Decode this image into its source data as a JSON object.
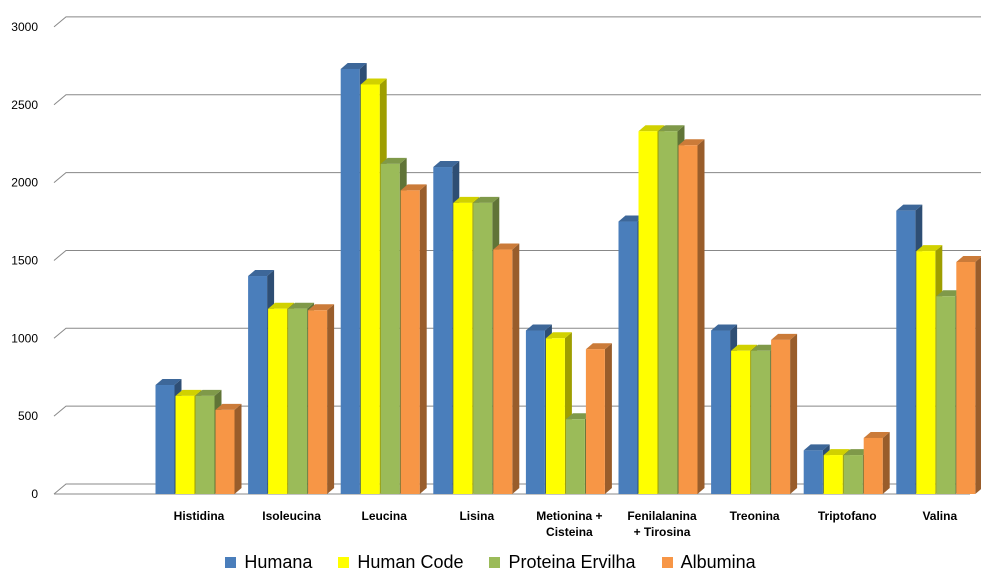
{
  "chart_data": {
    "type": "bar",
    "categories": [
      "Histidina",
      "Isoleucina",
      "Leucina",
      "Lisina",
      "Metionina + Cisteina",
      "Fenilalanina + Tirosina",
      "Treonina",
      "Triptofano",
      "Valina"
    ],
    "category_lines": [
      [
        "Histidina"
      ],
      [
        "Isoleucina"
      ],
      [
        "Leucina"
      ],
      [
        "Lisina"
      ],
      [
        "Metionina +",
        "Cisteina"
      ],
      [
        "Fenilalanina",
        "+ Tirosina"
      ],
      [
        "Treonina"
      ],
      [
        "Triptofano"
      ],
      [
        "Valina"
      ]
    ],
    "series": [
      {
        "name": "Humana",
        "color": "#4a7ebb",
        "values": [
          700,
          1400,
          2730,
          2100,
          1050,
          1750,
          1050,
          280,
          1820
        ]
      },
      {
        "name": "Human Code",
        "color": "#ffff00",
        "values": [
          630,
          1190,
          2630,
          1870,
          1000,
          2330,
          920,
          250,
          1560
        ]
      },
      {
        "name": "Proteina Ervilha",
        "color": "#9bbb59",
        "values": [
          630,
          1190,
          2120,
          1870,
          480,
          2330,
          920,
          250,
          1270
        ]
      },
      {
        "name": "Albumina",
        "color": "#f79646",
        "values": [
          540,
          1180,
          1950,
          1570,
          930,
          2240,
          990,
          360,
          1490
        ]
      }
    ],
    "yticks": [
      "0",
      "500",
      "1000",
      "1500",
      "2000",
      "2500",
      "3000"
    ],
    "ylim": [
      0,
      3000
    ],
    "grid": true,
    "legend_position": "bottom",
    "title": "",
    "xlabel": "",
    "ylabel": ""
  }
}
